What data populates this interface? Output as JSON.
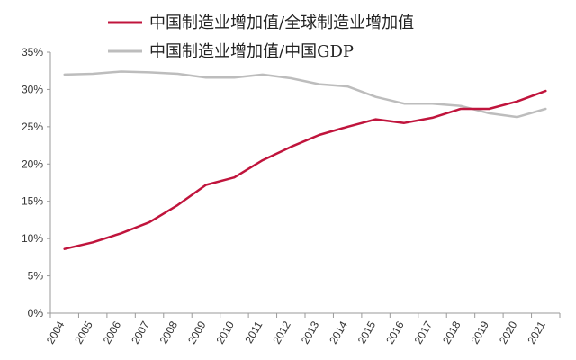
{
  "chart_data": {
    "type": "line",
    "categories": [
      "2004",
      "2005",
      "2006",
      "2007",
      "2008",
      "2009",
      "2010",
      "2011",
      "2012",
      "2013",
      "2014",
      "2015",
      "2016",
      "2017",
      "2018",
      "2019",
      "2020",
      "2021"
    ],
    "series": [
      {
        "name": "中国制造业增加值/全球制造业增加值",
        "color": "#c0143c",
        "values": [
          8.6,
          9.5,
          10.7,
          12.2,
          14.5,
          17.2,
          18.2,
          20.5,
          22.3,
          23.9,
          25.0,
          26.0,
          25.5,
          26.2,
          27.4,
          27.4,
          28.4,
          29.8
        ]
      },
      {
        "name": "中国制造业增加值/中国GDP",
        "color": "#bdbdbd",
        "values": [
          32.0,
          32.1,
          32.4,
          32.3,
          32.1,
          31.6,
          31.6,
          32.0,
          31.5,
          30.7,
          30.4,
          29.0,
          28.1,
          28.1,
          27.8,
          26.8,
          26.3,
          27.4
        ]
      }
    ],
    "ylim": [
      0,
      35
    ],
    "yticks": [
      "0%",
      "5%",
      "10%",
      "15%",
      "20%",
      "25%",
      "30%",
      "35%"
    ],
    "ytick_values": [
      0,
      5,
      10,
      15,
      20,
      25,
      30,
      35
    ],
    "grid": false,
    "legend_position": "top"
  }
}
